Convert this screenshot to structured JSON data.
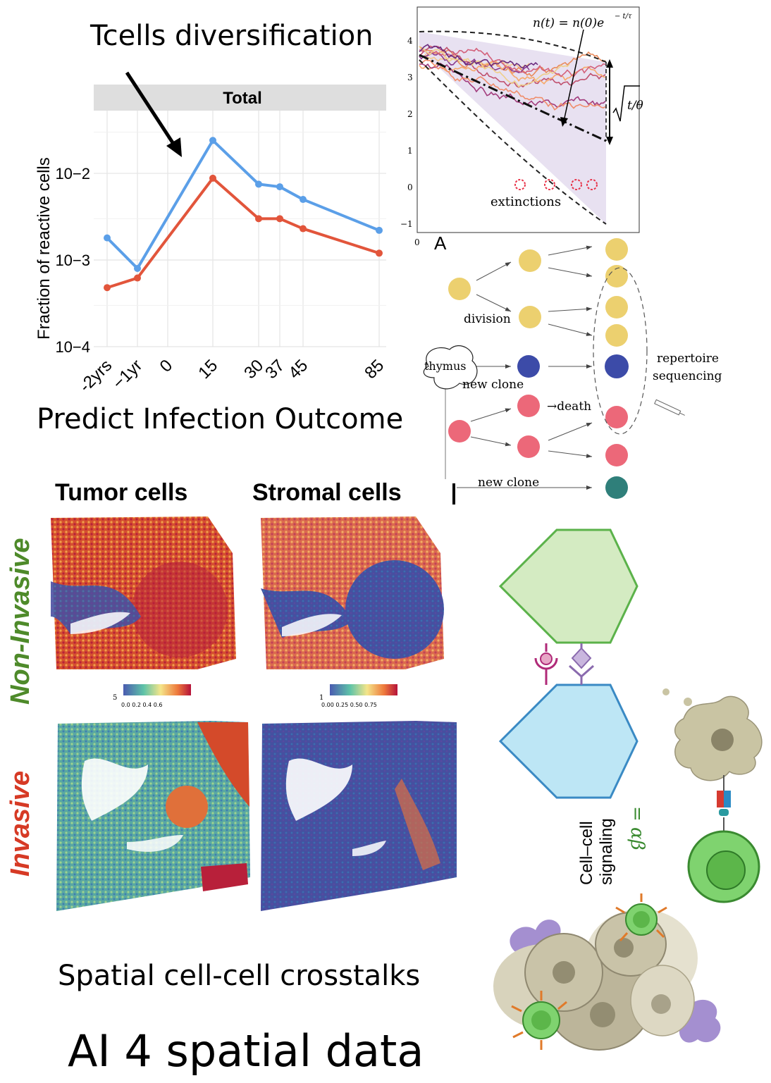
{
  "headings": {
    "diversification": "Tcells diversification",
    "predict": "Predict Infection Outcome",
    "spatial": "Spatial cell-cell crosstalks",
    "ai": "AI 4 spatial data"
  },
  "chart_data": {
    "type": "line",
    "title": "Total",
    "ylabel": "Fraction of reactive cells",
    "xlabel": "",
    "scale": "log",
    "ylim": [
      0.0001,
      0.05
    ],
    "yticks": [
      "10−2",
      "10−3",
      "10−4"
    ],
    "x_tick_labels": [
      "-2yrs",
      "−1yr",
      "0",
      "15",
      "30",
      "37",
      "45",
      "85"
    ],
    "grid": true,
    "legend": "none",
    "series": [
      {
        "color": "#5b9fe8",
        "points": [
          [
            -2,
            0.0018
          ],
          [
            -1,
            0.0008
          ],
          [
            15,
            0.024
          ],
          [
            30,
            0.0075
          ],
          [
            37,
            0.007
          ],
          [
            45,
            0.005
          ],
          [
            85,
            0.0022
          ]
        ]
      },
      {
        "color": "#e2553b",
        "points": [
          [
            -2,
            0.00048
          ],
          [
            -1,
            0.00062
          ],
          [
            15,
            0.0088
          ],
          [
            30,
            0.003
          ],
          [
            37,
            0.003
          ],
          [
            45,
            0.0023
          ],
          [
            85,
            0.0012
          ]
        ]
      }
    ]
  },
  "trajectory_plot": {
    "formula_label": "n(t) = n(0)e",
    "formula_exp": "− t/τ",
    "sqrt_label": "t/θ",
    "extinctions_label": "extinctions",
    "panel_letter": "A",
    "x_zero": "0",
    "y_ticks": [
      "4",
      "3",
      "2",
      "1",
      "0",
      "−1"
    ]
  },
  "tree": {
    "division": "division",
    "thymus": "thymus",
    "new_clone_1": "new clone",
    "death": "→death",
    "new_clone_2": "new clone",
    "repertoire": "repertoire",
    "sequencing": "sequencing"
  },
  "spatial": {
    "tumor_title": "Tumor cells",
    "stromal_title": "Stromal cells",
    "row_noninvasive": "Non-Invasive",
    "row_invasive": "Invasive",
    "cb1_max": "5",
    "cb1_ticks": "0.0    0.2    0.4    0.6",
    "cb2_max": "1",
    "cb2_ticks": "0.00  0.25  0.50  0.75"
  },
  "signaling": {
    "label_line1": "Cell–cell",
    "label_line2": "signaling",
    "ab_label": "= αβ"
  }
}
